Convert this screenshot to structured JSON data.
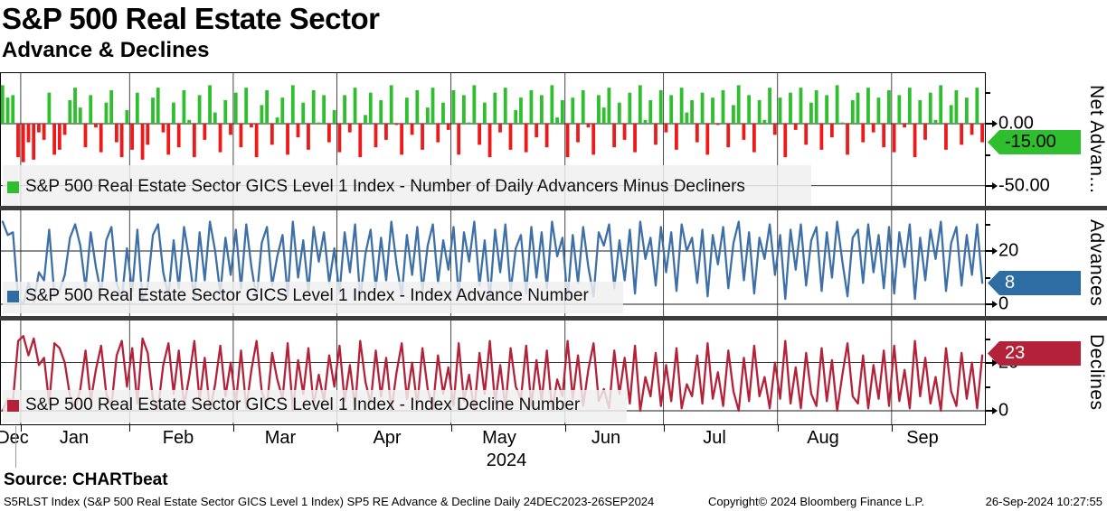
{
  "header": {
    "title": "S&P 500 Real Estate Sector",
    "subtitle": "Advance & Declines"
  },
  "panels": [
    {
      "axis_title": "Net Advan...",
      "legend": "S&P 500 Real Estate Sector GICS Level 1 Index -  Number of Daily Advancers Minus Decliners",
      "ticks": [
        "0.00",
        "-50.00"
      ],
      "last_label": "-15.00"
    },
    {
      "axis_title": "Advances",
      "legend": "S&P 500 Real Estate Sector GICS Level 1 Index -  Index Advance Number",
      "ticks": [
        "20",
        "0"
      ],
      "last_label": "8"
    },
    {
      "axis_title": "Declines",
      "legend": "S&P 500 Real Estate Sector GICS Level 1 Index -  Index Decline Number",
      "ticks": [
        "20",
        "0"
      ],
      "last_label": "23"
    }
  ],
  "colors": {
    "green": "#2ebe2e",
    "red": "#ee1a1a",
    "blue_line": "#3d70a8",
    "blue_badge": "#2e6da4",
    "crimson": "#b42239",
    "separator": "#3d3d3d"
  },
  "x_axis": {
    "months": [
      "Dec",
      "Jan",
      "Feb",
      "Mar",
      "Apr",
      "May",
      "Jun",
      "Jul",
      "Aug",
      "Sep"
    ],
    "year": "2024",
    "month_boundary_days": [
      4,
      25,
      45,
      65,
      87,
      109,
      128,
      150,
      172
    ],
    "total_days": 190
  },
  "footer": {
    "source": "Source: CHARTbeat",
    "left": "S5RLST Index (S&P 500 Real Estate Sector GICS Level 1 Index) SP5 RE Advance & Decline  Daily 24DEC2023-26SEP2024",
    "copyright": "Copyright© 2024 Bloomberg Finance L.P.",
    "datetime": "26-Sep-2024 10:27:55"
  },
  "chart_data": [
    {
      "type": "bar",
      "title": "Net Advances (Daily Advancers Minus Decliners)",
      "ylabel": "Net Advan...",
      "ylim": [
        -66,
        42
      ],
      "yticks_labeled": [
        0,
        -50
      ],
      "yticks_minor": [
        25,
        -25
      ],
      "last_value": -15,
      "x_range": "24DEC2023-26SEP2024 daily",
      "series": [
        {
          "name": "Number of Daily Advancers Minus Decliners",
          "values": [
            31,
            21,
            23,
            -27,
            -31,
            -15,
            -29,
            -7,
            -13,
            25,
            -25,
            -21,
            -9,
            19,
            29,
            13,
            -19,
            23,
            -3,
            -23,
            17,
            27,
            -15,
            -27,
            11,
            -21,
            25,
            -29,
            -17,
            21,
            29,
            -7,
            -25,
            17,
            -19,
            27,
            3,
            -27,
            23,
            -13,
            31,
            9,
            -23,
            19,
            -9,
            25,
            -19,
            29,
            -3,
            -27,
            15,
            27,
            -17,
            5,
            21,
            -25,
            31,
            -11,
            17,
            -21,
            27,
            1,
            23,
            -15,
            11,
            -23,
            23,
            -7,
            29,
            -27,
            7,
            25,
            -19,
            19,
            -13,
            31,
            -1,
            -25,
            21,
            -9,
            27,
            -21,
            13,
            29,
            -15,
            17,
            -5,
            27,
            -25,
            23,
            1,
            31,
            -17,
            17,
            -27,
            25,
            -7,
            29,
            -21,
            11,
            21,
            -23,
            27,
            -11,
            23,
            -19,
            31,
            5,
            19,
            -27,
            21,
            -15,
            27,
            -3,
            -25,
            23,
            13,
            29,
            -19,
            17,
            -13,
            25,
            -23,
            31,
            3,
            19,
            -17,
            27,
            -7,
            23,
            -21,
            29,
            9,
            19,
            -15,
            25,
            -25,
            21,
            -1,
            27,
            -19,
            15,
            31,
            -13,
            23,
            -23,
            19,
            3,
            29,
            -9,
            21,
            -27,
            25,
            -5,
            29,
            -17,
            17,
            27,
            -21,
            23,
            -11,
            31,
            1,
            -25,
            19,
            25,
            -15,
            29,
            -7,
            21,
            -19,
            27,
            -23,
            23,
            -3,
            29,
            -27,
            19,
            -13,
            25,
            3,
            31,
            -21,
            15,
            27,
            -17,
            21,
            -9,
            29,
            -15
          ]
        }
      ]
    },
    {
      "type": "line",
      "title": "Index Advance Number",
      "ylabel": "Advances",
      "ylim": [
        -4,
        35
      ],
      "yticks_labeled": [
        20,
        0
      ],
      "yticks_minor": [
        30,
        10
      ],
      "last_value": 8,
      "series": [
        {
          "name": "Index Advance Number",
          "values": [
            31,
            26,
            27,
            2,
            0,
            8,
            1,
            12,
            9,
            28,
            3,
            5,
            11,
            25,
            30,
            22,
            6,
            27,
            14,
            4,
            24,
            29,
            8,
            2,
            21,
            5,
            28,
            1,
            7,
            26,
            30,
            12,
            3,
            24,
            6,
            29,
            17,
            2,
            27,
            9,
            31,
            20,
            4,
            25,
            11,
            28,
            6,
            30,
            14,
            2,
            23,
            29,
            7,
            18,
            26,
            3,
            31,
            10,
            24,
            5,
            29,
            16,
            27,
            8,
            21,
            4,
            27,
            12,
            30,
            2,
            19,
            28,
            6,
            25,
            9,
            31,
            15,
            3,
            26,
            11,
            29,
            5,
            22,
            30,
            8,
            24,
            13,
            29,
            3,
            27,
            16,
            31,
            7,
            24,
            2,
            28,
            12,
            30,
            5,
            21,
            26,
            4,
            29,
            10,
            27,
            6,
            31,
            18,
            25,
            2,
            26,
            8,
            29,
            14,
            3,
            27,
            22,
            30,
            6,
            24,
            9,
            28,
            4,
            31,
            17,
            25,
            7,
            29,
            12,
            27,
            5,
            30,
            20,
            25,
            8,
            28,
            3,
            26,
            15,
            29,
            6,
            23,
            31,
            9,
            27,
            4,
            25,
            17,
            30,
            11,
            26,
            2,
            28,
            13,
            30,
            7,
            24,
            29,
            5,
            27,
            10,
            31,
            16,
            3,
            25,
            28,
            8,
            30,
            12,
            26,
            6,
            29,
            4,
            27,
            14,
            30,
            2,
            25,
            9,
            28,
            17,
            31,
            5,
            23,
            29,
            7,
            26,
            11,
            30,
            8
          ]
        }
      ]
    },
    {
      "type": "line",
      "title": "Index Decline Number",
      "ylabel": "Declines",
      "ylim": [
        -5,
        37
      ],
      "yticks_labeled": [
        20,
        0
      ],
      "yticks_minor": [
        30,
        10
      ],
      "last_value": 23,
      "series": [
        {
          "name": "Index Decline Number",
          "values": [
            0,
            5,
            4,
            29,
            31,
            23,
            30,
            19,
            22,
            3,
            28,
            26,
            20,
            6,
            1,
            9,
            25,
            4,
            17,
            27,
            7,
            2,
            23,
            29,
            10,
            26,
            3,
            30,
            24,
            5,
            1,
            19,
            28,
            7,
            25,
            2,
            14,
            29,
            4,
            22,
            0,
            11,
            27,
            6,
            20,
            3,
            25,
            1,
            17,
            29,
            8,
            2,
            24,
            13,
            5,
            28,
            0,
            21,
            7,
            26,
            2,
            15,
            4,
            23,
            10,
            27,
            4,
            19,
            1,
            29,
            12,
            3,
            25,
            6,
            22,
            0,
            16,
            28,
            5,
            20,
            2,
            26,
            9,
            1,
            23,
            7,
            18,
            2,
            28,
            4,
            15,
            0,
            24,
            7,
            29,
            3,
            19,
            1,
            26,
            10,
            5,
            27,
            2,
            21,
            4,
            25,
            0,
            13,
            6,
            29,
            5,
            23,
            2,
            17,
            28,
            4,
            9,
            1,
            25,
            7,
            22,
            3,
            27,
            0,
            14,
            6,
            24,
            2,
            19,
            4,
            26,
            1,
            11,
            6,
            23,
            3,
            28,
            5,
            16,
            2,
            25,
            8,
            0,
            22,
            4,
            27,
            6,
            14,
            1,
            20,
            5,
            29,
            3,
            18,
            1,
            24,
            7,
            2,
            26,
            4,
            21,
            0,
            15,
            28,
            6,
            3,
            23,
            1,
            19,
            5,
            25,
            2,
            27,
            4,
            17,
            1,
            29,
            6,
            22,
            3,
            14,
            0,
            26,
            8,
            2,
            24,
            5,
            20,
            1,
            23
          ]
        }
      ]
    }
  ]
}
